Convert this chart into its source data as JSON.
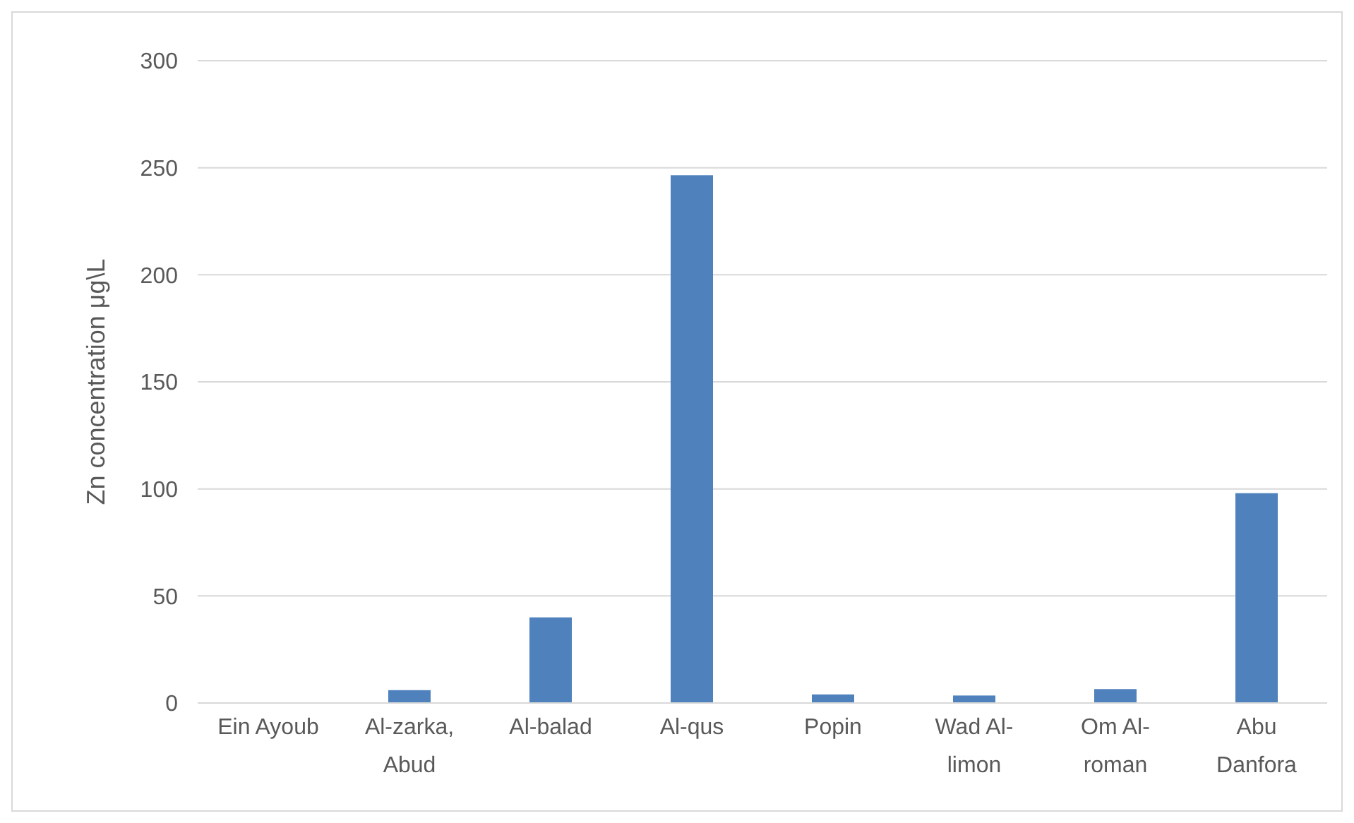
{
  "chart_data": {
    "type": "bar",
    "ylabel": "Zn concentration μg\\L",
    "categories": [
      "Ein Ayoub",
      "Al-zarka, Abud",
      "Al-balad",
      "Al-qus",
      "Popin",
      "Wad Al-limon",
      "Om Al-roman",
      "Abu Danfora"
    ],
    "values": [
      0,
      6,
      40,
      246.5,
      4,
      3.5,
      6.5,
      98
    ],
    "color": "#4f81bd",
    "ylim": [
      0,
      300
    ],
    "yticks": [
      0,
      50,
      100,
      150,
      200,
      250,
      300
    ],
    "grid": "y"
  }
}
